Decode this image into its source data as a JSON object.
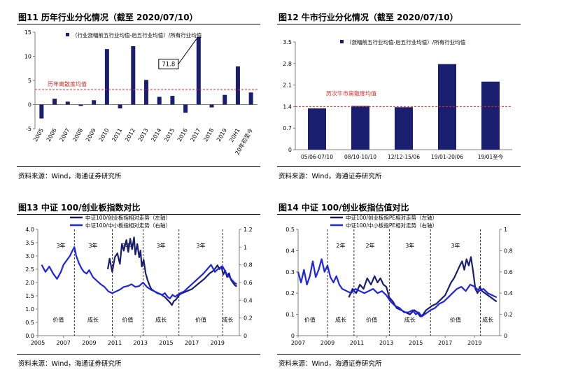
{
  "source_label": "资料来源：Wind，海通证券研究所",
  "colors": {
    "navy": "#1a1e6e",
    "blue": "#1f24e6",
    "red": "#e52b2b",
    "axis": "#7f7f7f"
  },
  "chart_data": [
    {
      "id": "fig11",
      "type": "bar",
      "title": "图11 历年行业分化情况（截至 2020/07/10）",
      "legend": "（行业涨幅前五行业均值-后五行业均值）/所有行业均值",
      "categories": [
        "2005",
        "2006",
        "2007",
        "2008",
        "2009",
        "2010",
        "2011",
        "2012",
        "2013",
        "2014",
        "2015",
        "2016",
        "2017",
        "2018",
        "2019",
        "20H1",
        "20年初至今"
      ],
      "values": [
        -2.9,
        1.2,
        0.6,
        -0.3,
        0.9,
        11.5,
        -0.8,
        12.1,
        5.1,
        1.6,
        1.8,
        -1.7,
        14.0,
        -0.6,
        2.0,
        7.9,
        2.5
      ],
      "ylim": [
        -5,
        15
      ],
      "yticks": [
        -5,
        0,
        5,
        10,
        15
      ],
      "reference_line": {
        "value": 3.1,
        "label": "历年离散度均值"
      },
      "callout": {
        "text": "71.8",
        "category": "2017"
      }
    },
    {
      "id": "fig12",
      "type": "bar",
      "title": "图12 牛市行业分化情况（截至 2020/07/10）",
      "legend": "（涨幅前五行业均值-后五行业均值）/所有行业均值",
      "categories": [
        "05/06-07/10",
        "08/10-10/10",
        "12/12-15/06",
        "19/01-20/06",
        "19/01至今"
      ],
      "values": [
        1.34,
        1.42,
        1.38,
        2.78,
        2.21
      ],
      "ylim": [
        0,
        3.5
      ],
      "yticks": [
        0,
        0.7,
        1.4,
        2.1,
        2.8,
        3.5
      ],
      "ytick_labels": [
        "0",
        "0.7",
        "1.4",
        "2.1",
        "2.8",
        "3.5"
      ],
      "reference_line": {
        "value": 1.4,
        "label": "历次牛市离散度均值"
      }
    },
    {
      "id": "fig13",
      "type": "line",
      "title": "图13 中证 100/创业板指数对比",
      "series": [
        {
          "name": "中证100/创业板指相对走势（左轴）",
          "axis": "left",
          "x": [
            2010.45,
            2010.6,
            2010.8,
            2011.0,
            2011.2,
            2011.4,
            2011.55,
            2011.7,
            2011.9,
            2012.05,
            2012.2,
            2012.35,
            2012.5,
            2012.6,
            2012.75,
            2012.9,
            2013.0,
            2013.1,
            2013.25,
            2013.4,
            2013.55,
            2013.7,
            2013.85,
            2014.0,
            2014.3,
            2014.6,
            2014.9,
            2015.1,
            2015.3,
            2015.45,
            2015.6,
            2015.75,
            2015.9,
            2016.05,
            2016.25,
            2016.5,
            2016.75,
            2017.0,
            2017.25,
            2017.5,
            2017.75,
            2018.0,
            2018.2,
            2018.4,
            2018.55,
            2018.7,
            2018.85,
            2019.0,
            2019.15,
            2019.3,
            2019.45,
            2019.6,
            2019.75,
            2019.9,
            2020.05,
            2020.2,
            2020.35,
            2020.5
          ],
          "y": [
            2.5,
            2.9,
            2.4,
            2.95,
            3.1,
            2.7,
            3.45,
            3.2,
            3.6,
            3.15,
            3.65,
            3.25,
            3.7,
            3.05,
            3.45,
            2.95,
            3.2,
            2.6,
            2.85,
            2.35,
            2.1,
            1.9,
            1.75,
            1.7,
            1.6,
            1.55,
            1.45,
            1.35,
            1.25,
            1.15,
            1.3,
            1.35,
            1.45,
            1.55,
            1.6,
            1.65,
            1.7,
            1.75,
            1.85,
            1.95,
            2.05,
            2.15,
            2.25,
            2.35,
            2.4,
            2.45,
            2.55,
            2.65,
            2.5,
            2.6,
            2.3,
            2.45,
            2.2,
            2.35,
            2.1,
            2.0,
            1.9,
            1.85
          ]
        },
        {
          "name": "中证100/中小板指相对走势（右轴）",
          "axis": "right",
          "x": [
            2005.3,
            2005.6,
            2005.9,
            2006.2,
            2006.5,
            2006.8,
            2007.0,
            2007.3,
            2007.5,
            2007.7,
            2007.85,
            2008.0,
            2008.2,
            2008.4,
            2008.6,
            2008.8,
            2009.0,
            2009.3,
            2009.6,
            2009.9,
            2010.2,
            2010.5,
            2010.8,
            2011.1,
            2011.4,
            2011.7,
            2012.0,
            2012.3,
            2012.6,
            2012.9,
            2013.2,
            2013.5,
            2013.8,
            2014.1,
            2014.4,
            2014.7,
            2014.9,
            2015.1,
            2015.3,
            2015.5,
            2015.7,
            2015.9,
            2016.1,
            2016.4,
            2016.7,
            2017.0,
            2017.3,
            2017.6,
            2017.9,
            2018.2,
            2018.5,
            2018.8,
            2019.1,
            2019.4,
            2019.7,
            2020.0,
            2020.3,
            2020.5
          ],
          "y": [
            0.8,
            0.72,
            0.78,
            0.7,
            0.64,
            0.72,
            0.8,
            0.86,
            0.9,
            0.96,
            1.0,
            0.9,
            0.82,
            0.76,
            0.72,
            0.7,
            0.74,
            0.66,
            0.62,
            0.58,
            0.55,
            0.5,
            0.48,
            0.5,
            0.52,
            0.55,
            0.56,
            0.58,
            0.55,
            0.56,
            0.6,
            0.55,
            0.52,
            0.5,
            0.48,
            0.46,
            0.48,
            0.44,
            0.42,
            0.46,
            0.44,
            0.46,
            0.48,
            0.5,
            0.54,
            0.58,
            0.62,
            0.66,
            0.7,
            0.75,
            0.8,
            0.72,
            0.76,
            0.78,
            0.7,
            0.65,
            0.6,
            0.58
          ]
        }
      ],
      "x_ticks": [
        "2005",
        "2007",
        "2009",
        "2011",
        "2013",
        "2015",
        "2017",
        "2019"
      ],
      "x_tick_values": [
        2005,
        2007,
        2009,
        2011,
        2013,
        2015,
        2017,
        2019
      ],
      "xlim": [
        2005,
        2020.7
      ],
      "y_left": {
        "lim": [
          0,
          4.0
        ],
        "ticks": [
          "0.0",
          "0.5",
          "1.0",
          "1.5",
          "2.0",
          "2.5",
          "3.0",
          "3.5",
          "4.0"
        ]
      },
      "y_right": {
        "lim": [
          0,
          1.2
        ],
        "ticks": [
          "0",
          "0.2",
          "0.4",
          "0.6",
          "0.8",
          "1",
          "1.2"
        ]
      },
      "dividers": [
        2007.85,
        2010.8,
        2013.2,
        2016.0,
        2019.4
      ],
      "period_labels": [
        {
          "text": "3年",
          "x": 2006.8,
          "row": "top"
        },
        {
          "text": "3年",
          "x": 2009.3,
          "row": "top"
        },
        {
          "text": "2年",
          "x": 2011.9,
          "row": "top"
        },
        {
          "text": "3年",
          "x": 2014.6,
          "row": "top"
        },
        {
          "text": "3年",
          "x": 2017.7,
          "row": "top"
        },
        {
          "text": "价值",
          "x": 2006.6,
          "row": "bottom"
        },
        {
          "text": "成长",
          "x": 2009.3,
          "row": "bottom"
        },
        {
          "text": "价值",
          "x": 2012.0,
          "row": "bottom"
        },
        {
          "text": "成长",
          "x": 2014.6,
          "row": "bottom"
        },
        {
          "text": "价值",
          "x": 2017.7,
          "row": "bottom"
        },
        {
          "text": "成长",
          "x": 2019.8,
          "row": "bottom"
        }
      ]
    },
    {
      "id": "fig14",
      "type": "line",
      "title": "图14 中证 100/创业板指估值对比",
      "series": [
        {
          "name": "中证100/创业板指PE相对走势（左轴）",
          "axis": "left",
          "x": [
            2010.45,
            2010.7,
            2010.95,
            2011.2,
            2011.45,
            2011.7,
            2011.95,
            2012.2,
            2012.4,
            2012.6,
            2012.8,
            2013.0,
            2013.2,
            2013.45,
            2013.7,
            2014.0,
            2014.3,
            2014.6,
            2014.9,
            2015.1,
            2015.3,
            2015.5,
            2015.7,
            2015.9,
            2016.1,
            2016.4,
            2016.7,
            2017.0,
            2017.2,
            2017.4,
            2017.6,
            2017.8,
            2018.0,
            2018.15,
            2018.3,
            2018.45,
            2018.6,
            2018.75,
            2018.9,
            2019.05,
            2019.2,
            2019.35,
            2019.5,
            2019.7,
            2019.9,
            2020.1,
            2020.3,
            2020.5
          ],
          "y": [
            0.18,
            0.22,
            0.2,
            0.24,
            0.22,
            0.27,
            0.24,
            0.28,
            0.25,
            0.27,
            0.24,
            0.23,
            0.18,
            0.16,
            0.13,
            0.12,
            0.11,
            0.1,
            0.12,
            0.11,
            0.09,
            0.1,
            0.12,
            0.13,
            0.14,
            0.15,
            0.17,
            0.19,
            0.22,
            0.25,
            0.27,
            0.3,
            0.33,
            0.35,
            0.31,
            0.36,
            0.33,
            0.37,
            0.3,
            0.22,
            0.2,
            0.23,
            0.21,
            0.2,
            0.19,
            0.18,
            0.17,
            0.16
          ]
        },
        {
          "name": "中证100/中小板指PE相对走势（右轴）",
          "axis": "right",
          "x": [
            2007.0,
            2007.2,
            2007.4,
            2007.6,
            2007.8,
            2008.0,
            2008.2,
            2008.4,
            2008.6,
            2008.8,
            2009.0,
            2009.2,
            2009.4,
            2009.6,
            2009.8,
            2010.0,
            2010.3,
            2010.6,
            2010.9,
            2011.2,
            2011.5,
            2011.8,
            2012.1,
            2012.4,
            2012.7,
            2013.0,
            2013.3,
            2013.6,
            2013.9,
            2014.2,
            2014.5,
            2014.8,
            2015.0,
            2015.2,
            2015.4,
            2015.6,
            2015.8,
            2016.0,
            2016.3,
            2016.6,
            2016.9,
            2017.2,
            2017.5,
            2017.8,
            2018.1,
            2018.4,
            2018.7,
            2019.0,
            2019.3,
            2019.6,
            2019.9,
            2020.2,
            2020.5
          ],
          "y": [
            0.6,
            0.5,
            0.62,
            0.48,
            0.56,
            0.7,
            0.55,
            0.62,
            0.72,
            0.6,
            0.66,
            0.55,
            0.5,
            0.56,
            0.48,
            0.44,
            0.42,
            0.4,
            0.44,
            0.42,
            0.4,
            0.42,
            0.44,
            0.4,
            0.42,
            0.38,
            0.32,
            0.28,
            0.26,
            0.22,
            0.22,
            0.24,
            0.2,
            0.22,
            0.18,
            0.2,
            0.22,
            0.24,
            0.26,
            0.3,
            0.32,
            0.36,
            0.4,
            0.44,
            0.46,
            0.42,
            0.48,
            0.46,
            0.42,
            0.44,
            0.4,
            0.38,
            0.36
          ]
        }
      ],
      "x_ticks": [
        "2007",
        "2009",
        "2011",
        "2013",
        "2015",
        "2017",
        "2019"
      ],
      "x_tick_values": [
        2007,
        2009,
        2011,
        2013,
        2015,
        2017,
        2019
      ],
      "xlim": [
        2007,
        2020.7
      ],
      "y_left": {
        "lim": [
          0,
          0.5
        ],
        "ticks": [
          "0",
          "0.1",
          "0.2",
          "0.3",
          "0.4",
          "0.5"
        ]
      },
      "y_right": {
        "lim": [
          0,
          1.0
        ],
        "ticks": [
          "0",
          "0.2",
          "0.4",
          "0.6",
          "0.8",
          "1"
        ]
      },
      "dividers": [
        2009.0,
        2010.8,
        2013.2,
        2016.0,
        2019.4
      ],
      "period_labels": [
        {
          "text": "2年",
          "x": 2009.9,
          "row": "top"
        },
        {
          "text": "2年",
          "x": 2011.9,
          "row": "top"
        },
        {
          "text": "3年",
          "x": 2014.6,
          "row": "top"
        },
        {
          "text": "3年",
          "x": 2017.7,
          "row": "top"
        },
        {
          "text": "价值",
          "x": 2007.8,
          "row": "bottom"
        },
        {
          "text": "成长",
          "x": 2009.9,
          "row": "bottom"
        },
        {
          "text": "价值",
          "x": 2012.0,
          "row": "bottom"
        },
        {
          "text": "成长",
          "x": 2014.6,
          "row": "bottom"
        },
        {
          "text": "价值",
          "x": 2017.7,
          "row": "bottom"
        },
        {
          "text": "成长",
          "x": 2019.9,
          "row": "bottom"
        }
      ]
    }
  ]
}
